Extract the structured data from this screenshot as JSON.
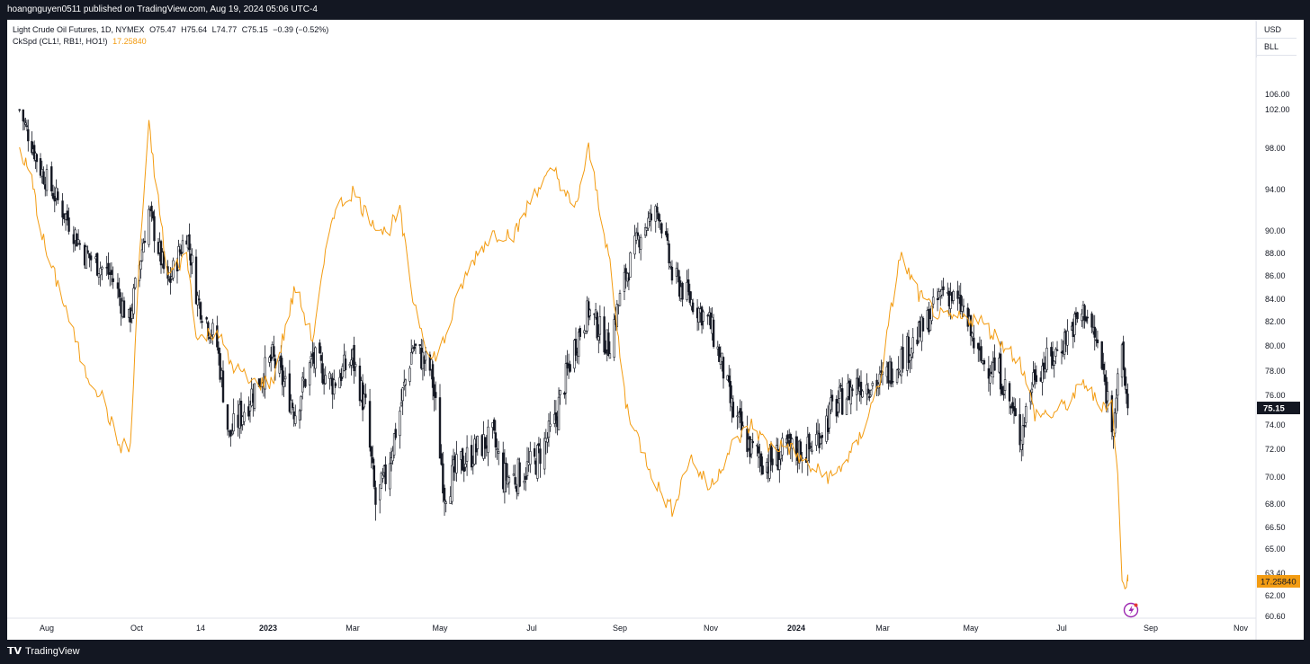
{
  "published_text": "hoangnguyen0511 published on TradingView.com, Aug 19, 2024 05:06 UTC-4",
  "footer_brand": "TradingView",
  "symbol_legend": {
    "name": "Light Crude Oil Futures, 1D, NYMEX",
    "open": "O75.47",
    "high": "H75.64",
    "low": "L74.77",
    "close": "C75.15",
    "change": "−0.39 (−0.52%)"
  },
  "indicator_legend": {
    "name": "CkSpd (CL1!, RB1!, HO1!)",
    "value": "17.25840"
  },
  "currency_menu": [
    "USD",
    "BLL"
  ],
  "colors": {
    "candle": "#131722",
    "spread_line": "#f39c12",
    "price_tag_bg": "#131722",
    "indicator_tag_bg": "#f39c12",
    "grid": "#ffffff",
    "flash_icon": "#9c27b0"
  },
  "flash_icon": "flash-icon",
  "chart_data": {
    "type": "line",
    "instrument": "Light Crude Oil Futures",
    "timeframe": "1D",
    "y_axis_ticks": [
      "106.00",
      "102.00",
      "98.00",
      "94.00",
      "90.00",
      "88.00",
      "86.00",
      "84.00",
      "82.00",
      "80.00",
      "78.00",
      "76.00",
      "74.00",
      "72.00",
      "70.00",
      "68.00",
      "66.50",
      "65.00",
      "63.40",
      "62.00",
      "60.60"
    ],
    "x_axis_ticks": [
      "Aug",
      "Oct",
      "14",
      "2023",
      "Mar",
      "May",
      "Jul",
      "Sep",
      "Nov",
      "2024",
      "Mar",
      "May",
      "Jul",
      "Sep",
      "Nov"
    ],
    "last_price_label": "75.15",
    "last_indicator_label": "17.25840",
    "price_series": {
      "name": "Light Crude Oil Futures",
      "style": "candles",
      "x": [
        "2022-07-15",
        "2022-08-01",
        "2022-08-15",
        "2022-08-29",
        "2022-09-15",
        "2022-09-26",
        "2022-10-03",
        "2022-10-10",
        "2022-10-24",
        "2022-11-07",
        "2022-11-15",
        "2022-11-28",
        "2022-12-06",
        "2022-12-20",
        "2023-01-04",
        "2023-01-20",
        "2023-02-01",
        "2023-02-15",
        "2023-03-01",
        "2023-03-10",
        "2023-03-17",
        "2023-03-24",
        "2023-04-03",
        "2023-04-12",
        "2023-04-25",
        "2023-05-04",
        "2023-05-15",
        "2023-05-25",
        "2023-06-05",
        "2023-06-12",
        "2023-06-20",
        "2023-07-03",
        "2023-07-17",
        "2023-07-31",
        "2023-08-10",
        "2023-08-24",
        "2023-09-05",
        "2023-09-15",
        "2023-09-27",
        "2023-10-06",
        "2023-10-18",
        "2023-10-31",
        "2023-11-10",
        "2023-11-16",
        "2023-11-30",
        "2023-12-12",
        "2023-12-26",
        "2024-01-10",
        "2024-01-26",
        "2024-02-12",
        "2024-02-28",
        "2024-03-13",
        "2024-03-27",
        "2024-04-05",
        "2024-04-12",
        "2024-04-26",
        "2024-05-06",
        "2024-05-20",
        "2024-06-03",
        "2024-06-13",
        "2024-06-25",
        "2024-07-05",
        "2024-07-17",
        "2024-07-26",
        "2024-08-05",
        "2024-08-12",
        "2024-08-16"
      ],
      "y": [
        102,
        96,
        92,
        88,
        86,
        82,
        87,
        92,
        85,
        90,
        84,
        80,
        73,
        76,
        79,
        75,
        79,
        77,
        79,
        75,
        68,
        70,
        75,
        80,
        78,
        69,
        71,
        72,
        73,
        70,
        70,
        71,
        74,
        80,
        83,
        80,
        86,
        90,
        92,
        86,
        84,
        82,
        78,
        75,
        72,
        71,
        72,
        72,
        75,
        77,
        77,
        79,
        81,
        83,
        85,
        83,
        79,
        78,
        73,
        78,
        79,
        81,
        83,
        80,
        74,
        79,
        75.15
      ]
    },
    "indicator_series": {
      "name": "CkSpd (CL1!, RB1!, HO1!)",
      "x": [
        "2022-07-15",
        "2022-07-25",
        "2022-08-05",
        "2022-08-15",
        "2022-08-29",
        "2022-09-08",
        "2022-09-20",
        "2022-09-27",
        "2022-10-03",
        "2022-10-10",
        "2022-10-24",
        "2022-11-07",
        "2022-11-15",
        "2022-11-28",
        "2022-12-06",
        "2022-12-20",
        "2023-01-04",
        "2023-01-20",
        "2023-02-01",
        "2023-02-15",
        "2023-03-01",
        "2023-03-10",
        "2023-03-24",
        "2023-04-03",
        "2023-04-12",
        "2023-04-25",
        "2023-05-04",
        "2023-05-15",
        "2023-05-25",
        "2023-06-05",
        "2023-06-20",
        "2023-07-03",
        "2023-07-17",
        "2023-07-31",
        "2023-08-10",
        "2023-08-24",
        "2023-09-05",
        "2023-09-15",
        "2023-09-27",
        "2023-10-06",
        "2023-10-18",
        "2023-10-31",
        "2023-11-16",
        "2023-11-30",
        "2023-12-12",
        "2023-12-26",
        "2024-01-10",
        "2024-01-26",
        "2024-02-12",
        "2024-02-28",
        "2024-03-13",
        "2024-03-27",
        "2024-04-12",
        "2024-04-26",
        "2024-05-06",
        "2024-05-20",
        "2024-06-03",
        "2024-06-13",
        "2024-06-25",
        "2024-07-05",
        "2024-07-17",
        "2024-07-26",
        "2024-08-05",
        "2024-08-09",
        "2024-08-12",
        "2024-08-16"
      ],
      "y": [
        58,
        55,
        48,
        44,
        37,
        35,
        30,
        30,
        48,
        60,
        46,
        48,
        40,
        41,
        38,
        36,
        36,
        45,
        40,
        52,
        54,
        52,
        50,
        52,
        44,
        38,
        40,
        45,
        48,
        50,
        50,
        54,
        56,
        52,
        58,
        48,
        34,
        30,
        26,
        24,
        29,
        26,
        30,
        32,
        30,
        30,
        28,
        27,
        30,
        36,
        48,
        44,
        42,
        42,
        42,
        40,
        38,
        33,
        33,
        34,
        36,
        34,
        34,
        27,
        17,
        17.2584
      ]
    }
  }
}
